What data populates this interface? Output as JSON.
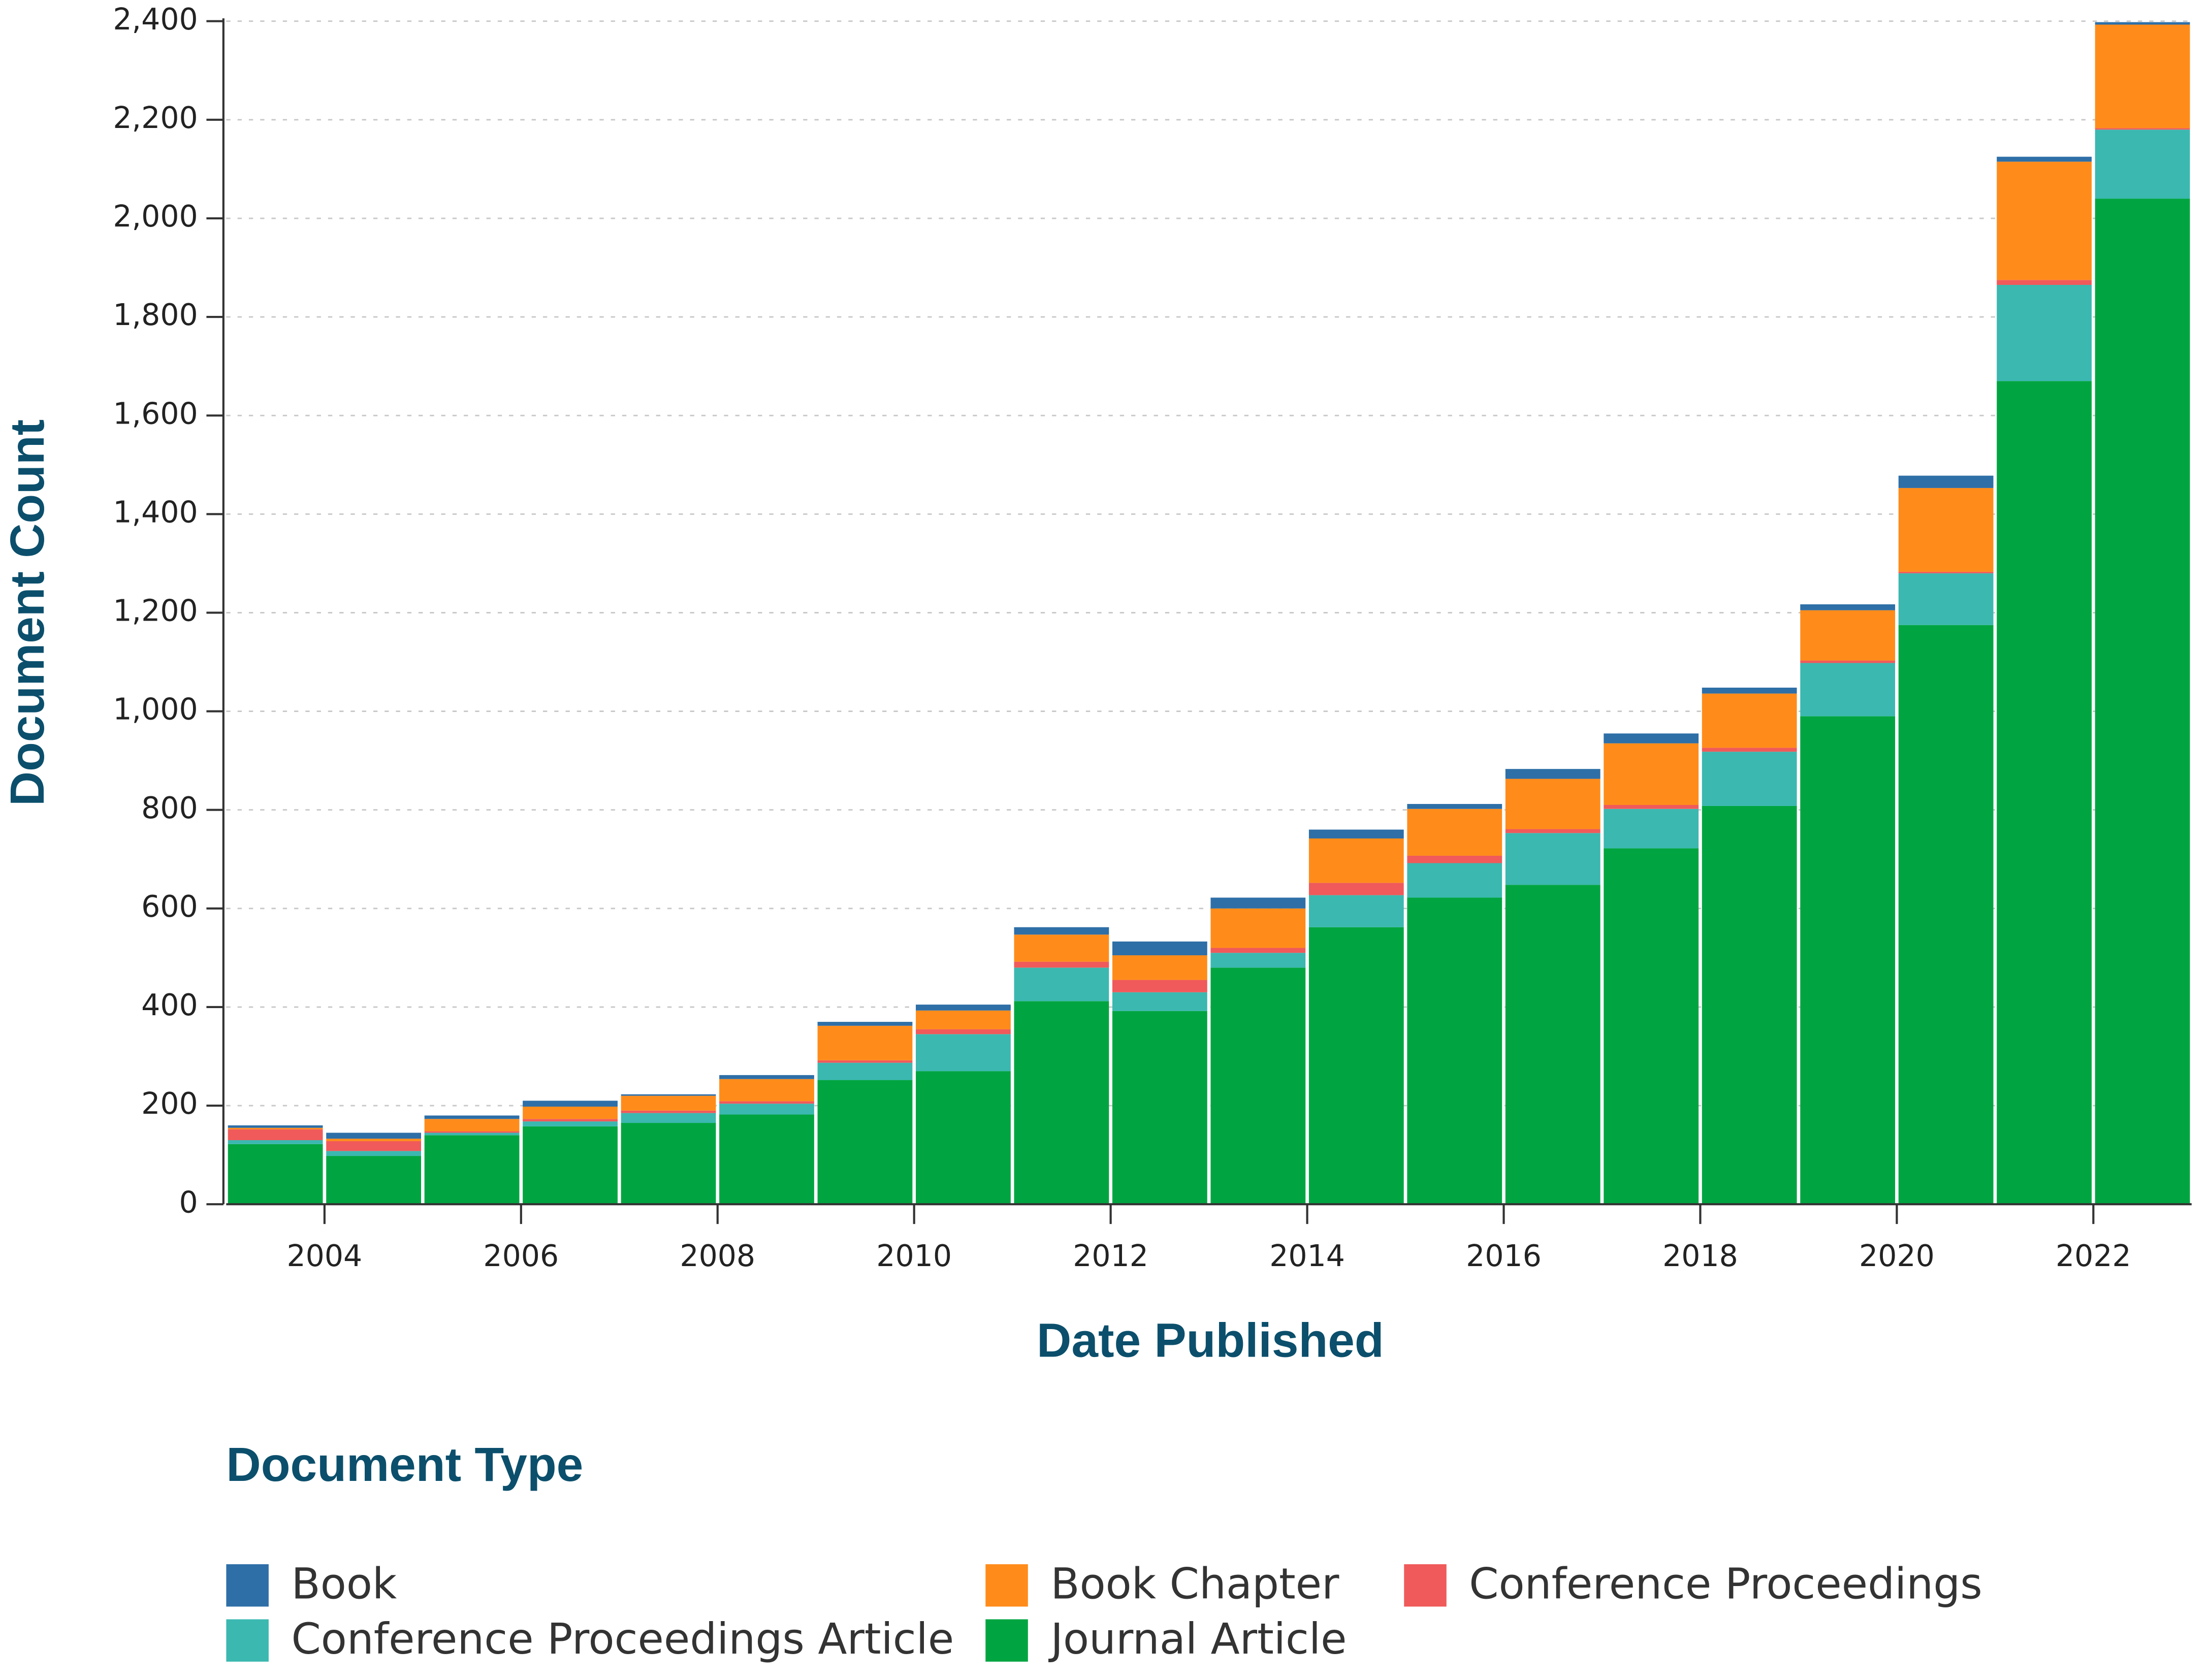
{
  "chart_data": {
    "type": "bar",
    "stacked": true,
    "x_label": "Date Published",
    "y_label": "Document Count",
    "legend_title": "Document Type",
    "x": [
      2003,
      2004,
      2005,
      2006,
      2007,
      2008,
      2009,
      2010,
      2011,
      2012,
      2013,
      2014,
      2015,
      2016,
      2017,
      2018,
      2019,
      2020,
      2021,
      2022
    ],
    "series": [
      {
        "name": "Book",
        "color": "#2e6fa7",
        "values": [
          5,
          12,
          7,
          12,
          3,
          8,
          8,
          12,
          15,
          28,
          22,
          18,
          10,
          20,
          20,
          12,
          12,
          25,
          10,
          5
        ]
      },
      {
        "name": "Book Chapter",
        "color": "#ff8c1a",
        "values": [
          3,
          5,
          25,
          25,
          30,
          45,
          70,
          38,
          55,
          50,
          80,
          90,
          95,
          102,
          125,
          110,
          102,
          170,
          240,
          210
        ]
      },
      {
        "name": "Conference Proceedings",
        "color": "#f05a5a",
        "values": [
          22,
          20,
          3,
          5,
          5,
          5,
          5,
          10,
          12,
          25,
          10,
          25,
          15,
          8,
          8,
          8,
          5,
          3,
          10,
          3
        ]
      },
      {
        "name": "Conference Proceedings Article",
        "color": "#3bb8b0",
        "values": [
          8,
          10,
          5,
          10,
          20,
          22,
          35,
          75,
          68,
          38,
          30,
          65,
          70,
          105,
          80,
          110,
          108,
          105,
          195,
          140
        ]
      },
      {
        "name": "Journal Article",
        "color": "#00a541",
        "values": [
          122,
          98,
          140,
          158,
          165,
          182,
          252,
          270,
          412,
          392,
          480,
          562,
          622,
          648,
          722,
          808,
          990,
          1175,
          1670,
          2040
        ]
      }
    ],
    "xlim": [
      2003,
      2023
    ],
    "xticks": [
      2004,
      2006,
      2008,
      2010,
      2012,
      2014,
      2016,
      2018,
      2020,
      2022
    ],
    "ylim": [
      0,
      2400
    ],
    "yticks": [
      0,
      200,
      400,
      600,
      800,
      {
        "value": 1000,
        "label": "1,000"
      },
      {
        "value": 1200,
        "label": "1,200"
      },
      {
        "value": 1400,
        "label": "1,400"
      },
      {
        "value": 1600,
        "label": "1,600"
      },
      {
        "value": 1800,
        "label": "1,800"
      },
      {
        "value": 2000,
        "label": "2,000"
      },
      {
        "value": 2200,
        "label": "2,200"
      },
      {
        "value": 2400,
        "label": "2,400"
      }
    ],
    "grid": true,
    "legend_position": "bottom"
  }
}
